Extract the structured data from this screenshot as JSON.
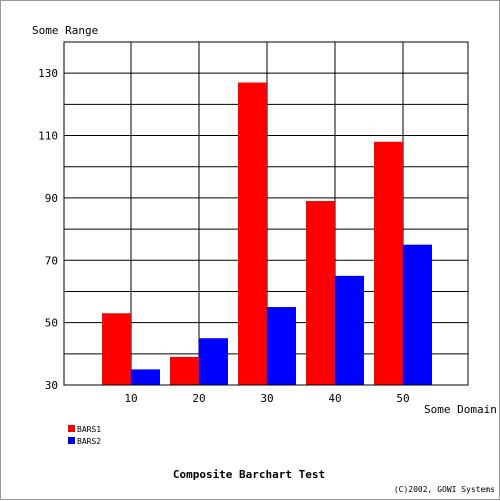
{
  "chart_data": {
    "type": "bar",
    "title": "Composite Barchart Test",
    "ylabel": "Some Range",
    "xlabel": "Some Domain",
    "categories": [
      "10",
      "20",
      "30",
      "40",
      "50"
    ],
    "series": [
      {
        "name": "BARS1",
        "color": "#ff0000",
        "values": [
          53,
          39,
          127,
          89,
          108
        ]
      },
      {
        "name": "BARS2",
        "color": "#0000ff",
        "values": [
          35,
          45,
          55,
          65,
          75
        ]
      }
    ],
    "ylim": [
      30,
      140
    ],
    "yticks": [
      30,
      50,
      70,
      90,
      110,
      130
    ],
    "grid": true,
    "legend": "bottom-left"
  },
  "footer": {
    "copyright": "(C)2002, GOWI Systems"
  }
}
